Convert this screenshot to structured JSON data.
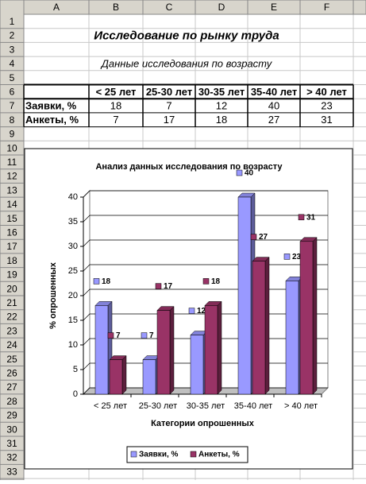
{
  "sheet": {
    "columns": [
      "A",
      "B",
      "C",
      "D",
      "E",
      "F"
    ],
    "row_numbers": [
      1,
      2,
      3,
      4,
      5,
      6,
      7,
      8,
      9,
      10,
      11,
      12,
      13,
      14,
      15,
      16,
      17,
      18,
      19,
      20,
      21,
      22,
      23,
      24,
      25,
      26,
      27,
      28,
      29,
      30,
      31,
      32,
      33
    ],
    "title": "Исследование по рынку труда",
    "subtitle": "Данные исследования по возрасту",
    "table": {
      "header": [
        "< 25 лет",
        "25-30 лет",
        "30-35 лет",
        "35-40 лет",
        "> 40 лет"
      ],
      "rows": [
        [
          "Заявки, %",
          18,
          7,
          12,
          40,
          23
        ],
        [
          "Анкеты, %",
          7,
          17,
          18,
          27,
          31
        ]
      ]
    }
  },
  "chart_data": {
    "type": "bar",
    "title": "Анализ данных исследования по возрасту",
    "x_label": "Категории опрошенных",
    "y_label": "% опрошенных",
    "categories": [
      "< 25 лет",
      "25-30 лет",
      "30-35 лет",
      "35-40 лет",
      "> 40 лет"
    ],
    "series": [
      {
        "name": "Заявки, %",
        "color": "#9999ff",
        "values": [
          18,
          7,
          12,
          40,
          23
        ]
      },
      {
        "name": "Анкеты, %",
        "color": "#993366",
        "values": [
          7,
          17,
          18,
          27,
          31
        ]
      }
    ],
    "ylim": [
      0,
      40
    ],
    "yticks": [
      0,
      5,
      10,
      15,
      20,
      25,
      30,
      35,
      40
    ],
    "grid": true,
    "legend": "bottom"
  }
}
